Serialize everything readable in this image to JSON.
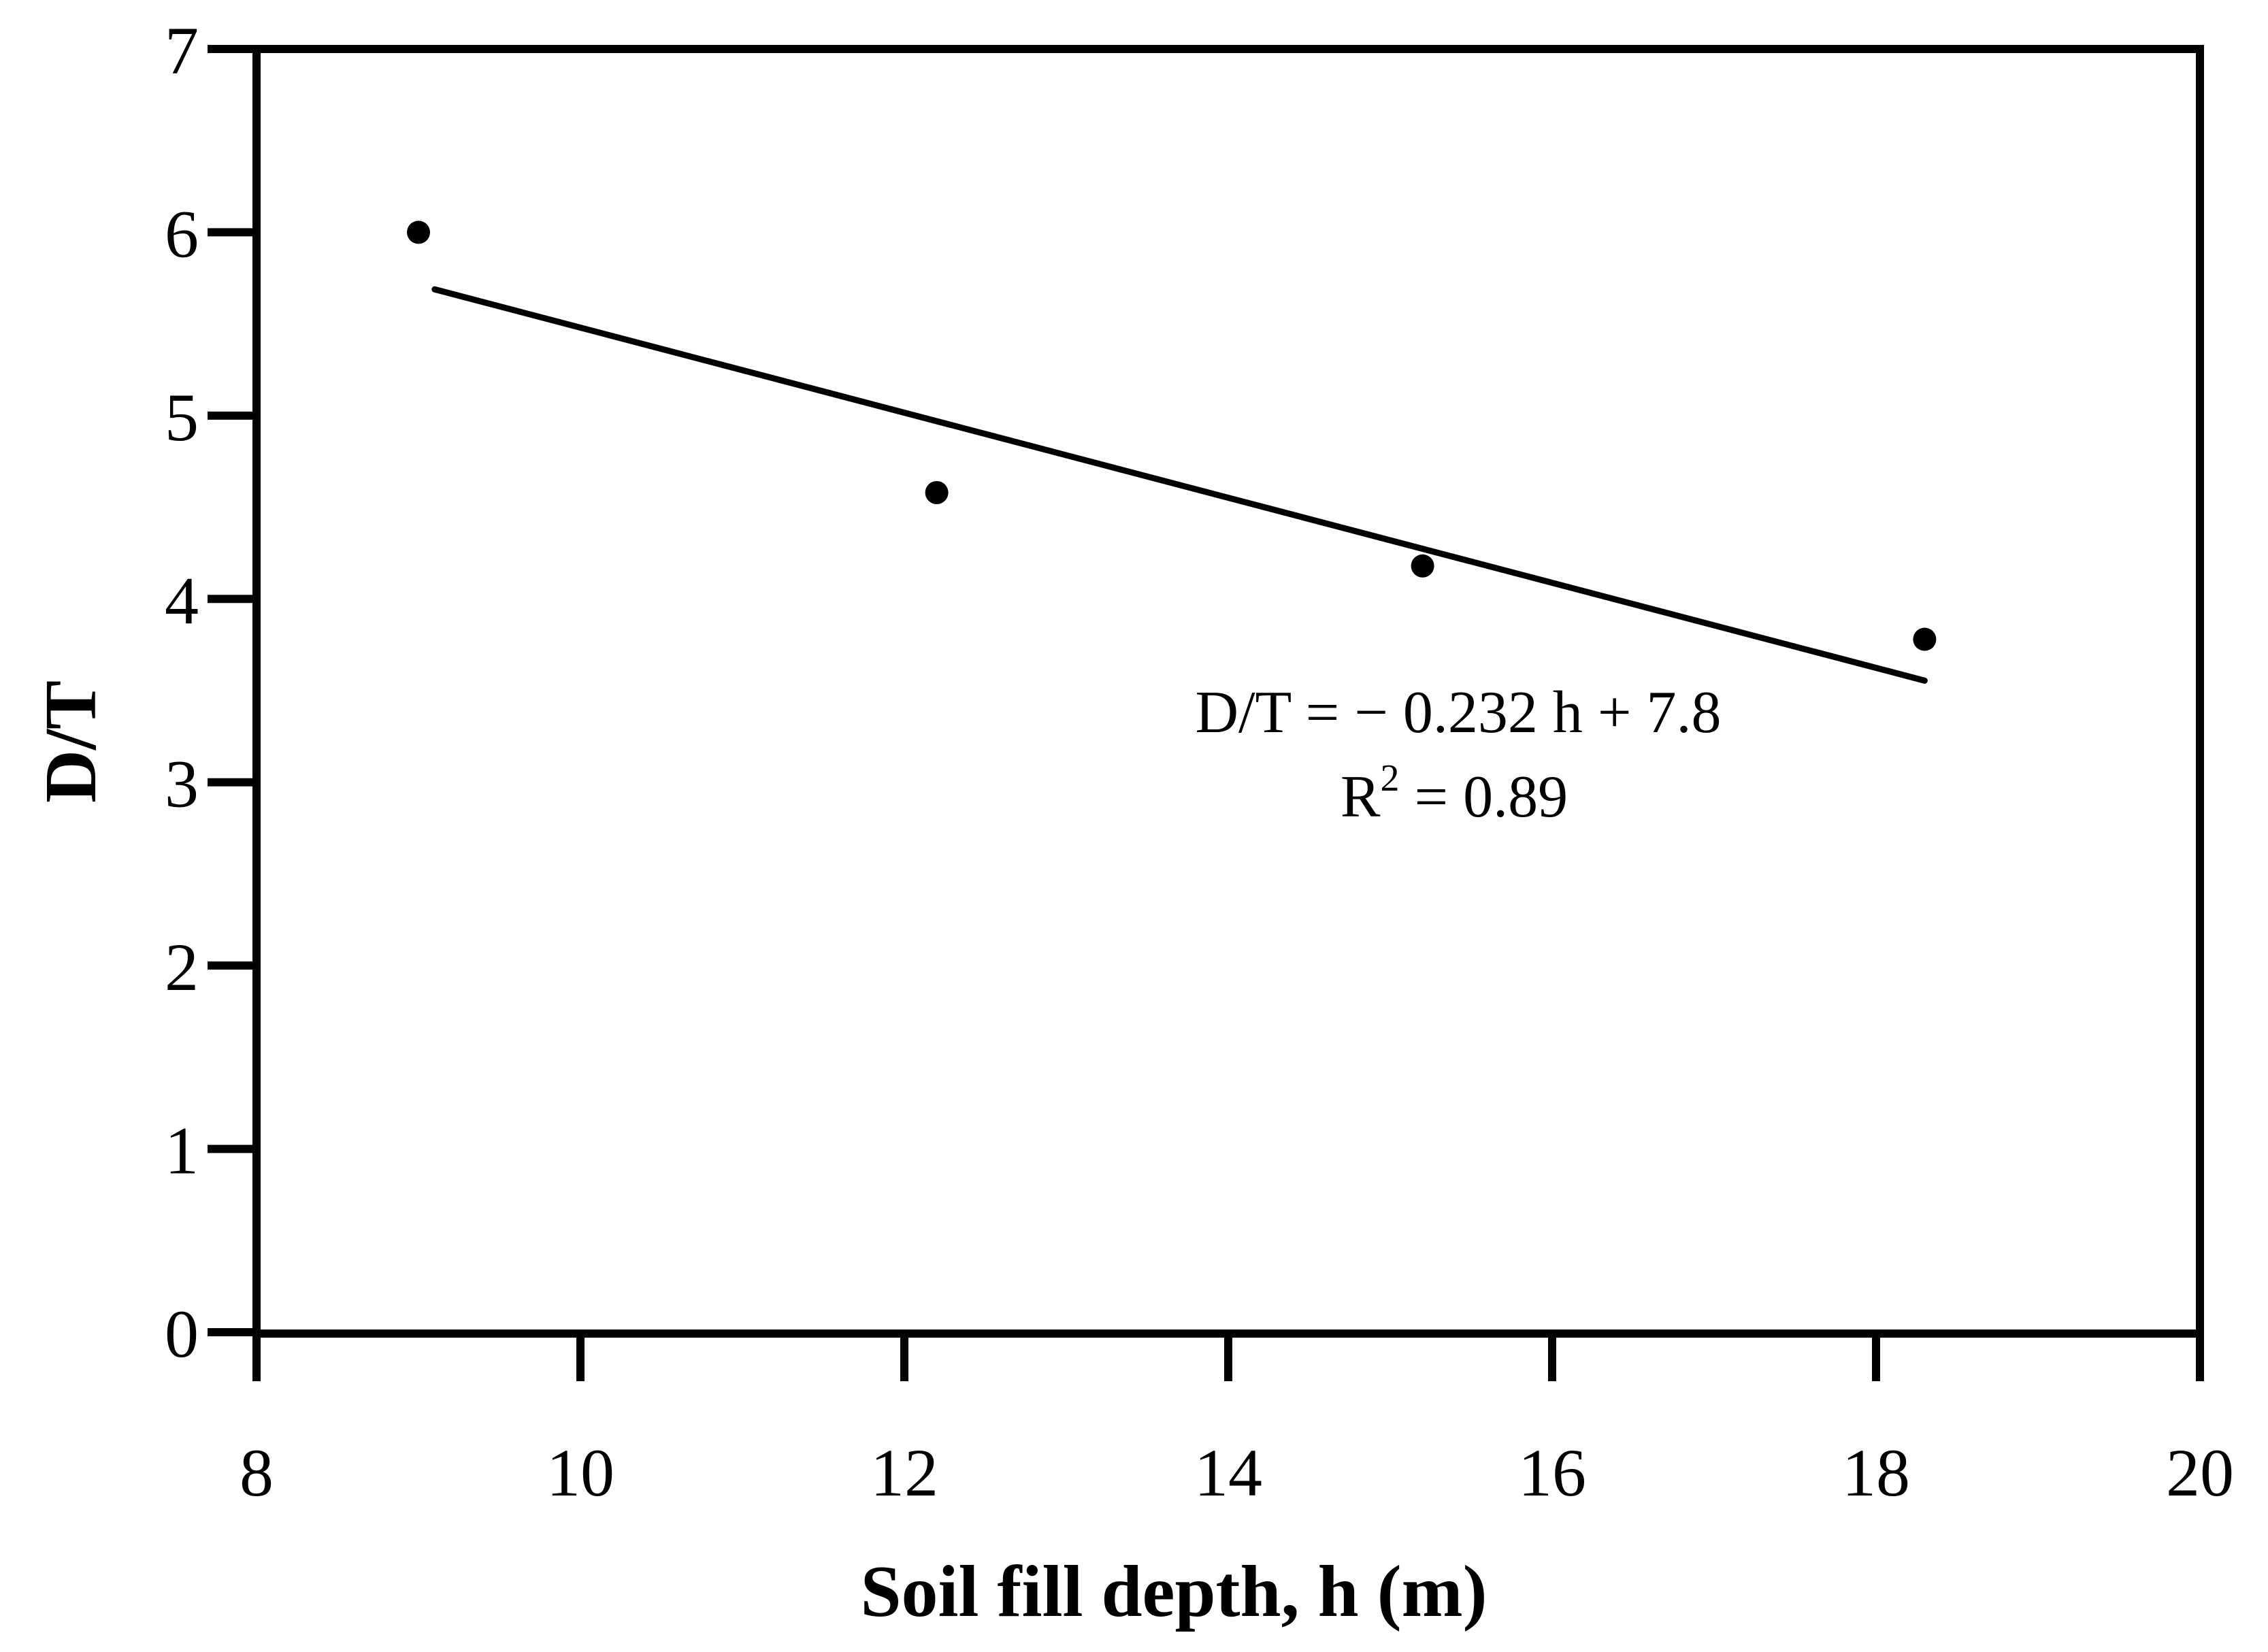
{
  "chart_data": {
    "type": "scatter",
    "title": "",
    "xlabel": "Soil fill depth, h (m)",
    "ylabel": "D/T",
    "xlim": [
      8,
      20
    ],
    "ylim": [
      0,
      7
    ],
    "x_ticks": [
      8,
      10,
      12,
      14,
      16,
      18,
      20
    ],
    "y_ticks": [
      0,
      1,
      2,
      3,
      4,
      5,
      6,
      7
    ],
    "grid": false,
    "series": [
      {
        "points": [
          {
            "x": 9.0,
            "y": 6.0
          },
          {
            "x": 12.2,
            "y": 4.58
          },
          {
            "x": 15.2,
            "y": 4.18
          },
          {
            "x": 18.3,
            "y": 3.78
          }
        ]
      }
    ],
    "trendline": {
      "slope": -0.232,
      "intercept": 7.8,
      "x_range": [
        9.1,
        18.3
      ]
    },
    "annotations": {
      "equation": "D/T = − 0.232 h + 7.8",
      "r2_prefix": "R",
      "r2_superscript": "2",
      "r2_value": " = 0.89"
    },
    "colors": {
      "axis": "#000000",
      "marker": "#000000",
      "trendline": "#000000",
      "background": "#ffffff"
    }
  }
}
